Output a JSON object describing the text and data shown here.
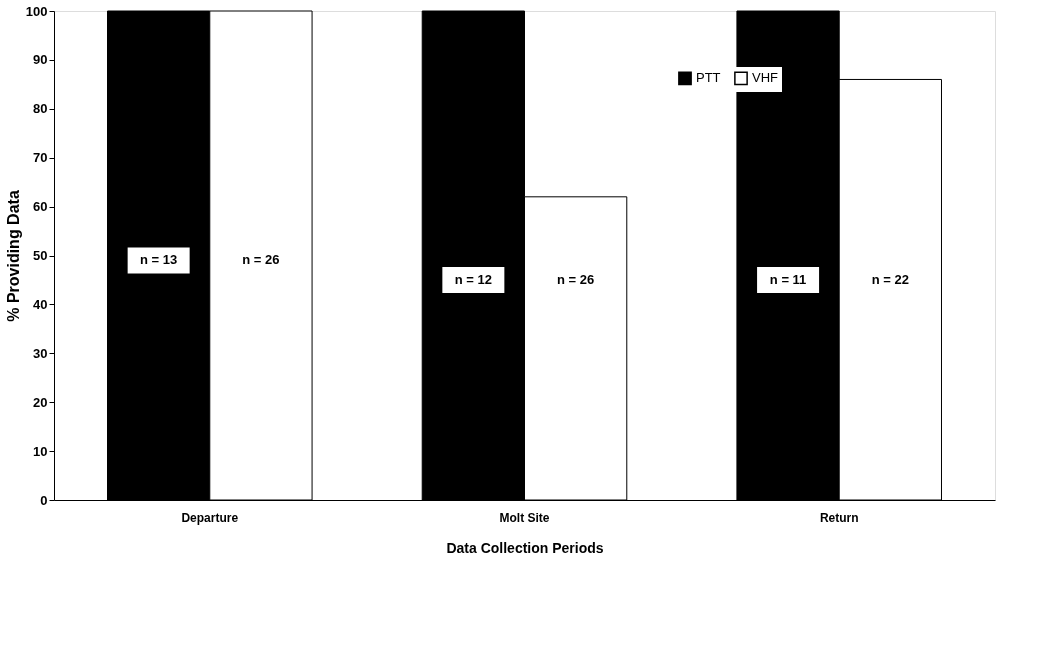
{
  "chart_data": {
    "type": "bar",
    "xlabel": "Data Collection Periods",
    "ylabel": "% Providing Data",
    "categories": [
      "Departure",
      "Molt Site",
      "Return"
    ],
    "series": [
      {
        "name": "PTT",
        "color": "#000000",
        "values": [
          100,
          100,
          100
        ]
      },
      {
        "name": "VHF",
        "color": "#ffffff",
        "values": [
          100,
          62,
          86
        ]
      }
    ],
    "annotations": [
      {
        "text": "n = 13",
        "x": "Departure",
        "y": 49
      },
      {
        "text": "n = 26",
        "x": "Departure",
        "y": 49
      },
      {
        "text": "n = 12",
        "x": "Molt Site",
        "y": 45
      },
      {
        "text": "n = 26",
        "x": "Molt Site",
        "y": 45
      },
      {
        "text": "n = 11",
        "x": "Return",
        "y": 45
      },
      {
        "text": "n = 22",
        "x": "Return",
        "y": 45
      }
    ],
    "ylim": [
      0,
      100
    ],
    "yticks": [
      0,
      10,
      20,
      30,
      40,
      50,
      60,
      70,
      80,
      90,
      100
    ],
    "grid": false,
    "legend": "top right"
  }
}
